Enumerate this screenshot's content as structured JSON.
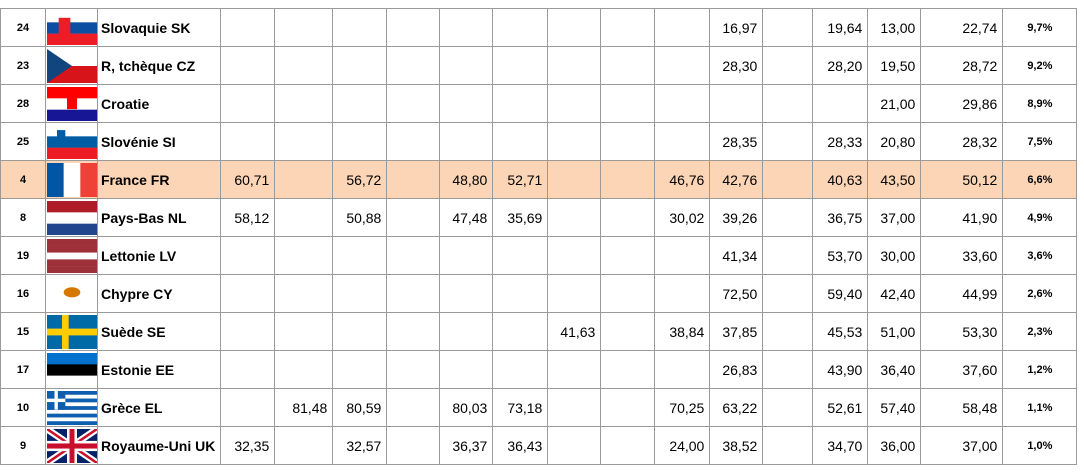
{
  "table": {
    "rows": [
      {
        "rank": "24",
        "name": "Slovaquie SK",
        "cells": [
          null,
          null,
          null,
          null,
          null,
          null,
          null,
          null,
          null,
          "16,97",
          null,
          "19,64",
          "13,00",
          "22,74"
        ],
        "pct": "9,7%"
      },
      {
        "rank": "23",
        "name": "R, tchèque CZ",
        "cells": [
          null,
          null,
          null,
          null,
          null,
          null,
          null,
          null,
          null,
          "28,30",
          null,
          "28,20",
          "19,50",
          "28,72"
        ],
        "pct": "9,2%"
      },
      {
        "rank": "28",
        "name": "Croatie",
        "cells": [
          null,
          null,
          null,
          null,
          null,
          null,
          null,
          null,
          null,
          null,
          null,
          null,
          "21,00",
          "29,86"
        ],
        "pct": "8,9%"
      },
      {
        "rank": "25",
        "name": "Slovénie SI",
        "cells": [
          null,
          null,
          null,
          null,
          null,
          null,
          null,
          null,
          null,
          "28,35",
          null,
          "28,33",
          "20,80",
          "28,32"
        ],
        "pct": "7,5%"
      },
      {
        "rank": "4",
        "name": "France FR",
        "cells": [
          "60,71",
          null,
          "56,72",
          null,
          "48,80",
          "52,71",
          null,
          null,
          "46,76",
          "42,76",
          null,
          "40,63",
          "43,50",
          "50,12"
        ],
        "pct": "6,6%"
      },
      {
        "rank": "8",
        "name": "Pays-Bas NL",
        "cells": [
          "58,12",
          null,
          "50,88",
          null,
          "47,48",
          "35,69",
          null,
          null,
          "30,02",
          "39,26",
          null,
          "36,75",
          "37,00",
          "41,90"
        ],
        "pct": "4,9%"
      },
      {
        "rank": "19",
        "name": "Lettonie LV",
        "cells": [
          null,
          null,
          null,
          null,
          null,
          null,
          null,
          null,
          null,
          "41,34",
          null,
          "53,70",
          "30,00",
          "33,60"
        ],
        "pct": "3,6%"
      },
      {
        "rank": "16",
        "name": "Chypre CY",
        "cells": [
          null,
          null,
          null,
          null,
          null,
          null,
          null,
          null,
          null,
          "72,50",
          null,
          "59,40",
          "42,40",
          "44,99"
        ],
        "pct": "2,6%"
      },
      {
        "rank": "15",
        "name": "Suède SE",
        "cells": [
          null,
          null,
          null,
          null,
          null,
          null,
          "41,63",
          null,
          "38,84",
          "37,85",
          null,
          "45,53",
          "51,00",
          "53,30"
        ],
        "pct": "2,3%"
      },
      {
        "rank": "17",
        "name": "Estonie EE",
        "cells": [
          null,
          null,
          null,
          null,
          null,
          null,
          null,
          null,
          null,
          "26,83",
          null,
          "43,90",
          "36,40",
          "37,60"
        ],
        "pct": "1,2%"
      },
      {
        "rank": "10",
        "name": "Grèce EL",
        "cells": [
          null,
          "81,48",
          "80,59",
          null,
          "80,03",
          "73,18",
          null,
          null,
          "70,25",
          "63,22",
          null,
          "52,61",
          "57,40",
          "58,48"
        ],
        "pct": "1,1%"
      },
      {
        "rank": "9",
        "name": "Royaume-Uni UK",
        "cells": [
          "32,35",
          null,
          "32,57",
          null,
          "36,37",
          "36,43",
          null,
          null,
          "24,00",
          "38,52",
          null,
          "34,70",
          "36,00",
          "37,00"
        ],
        "pct": "1,0%"
      }
    ]
  }
}
